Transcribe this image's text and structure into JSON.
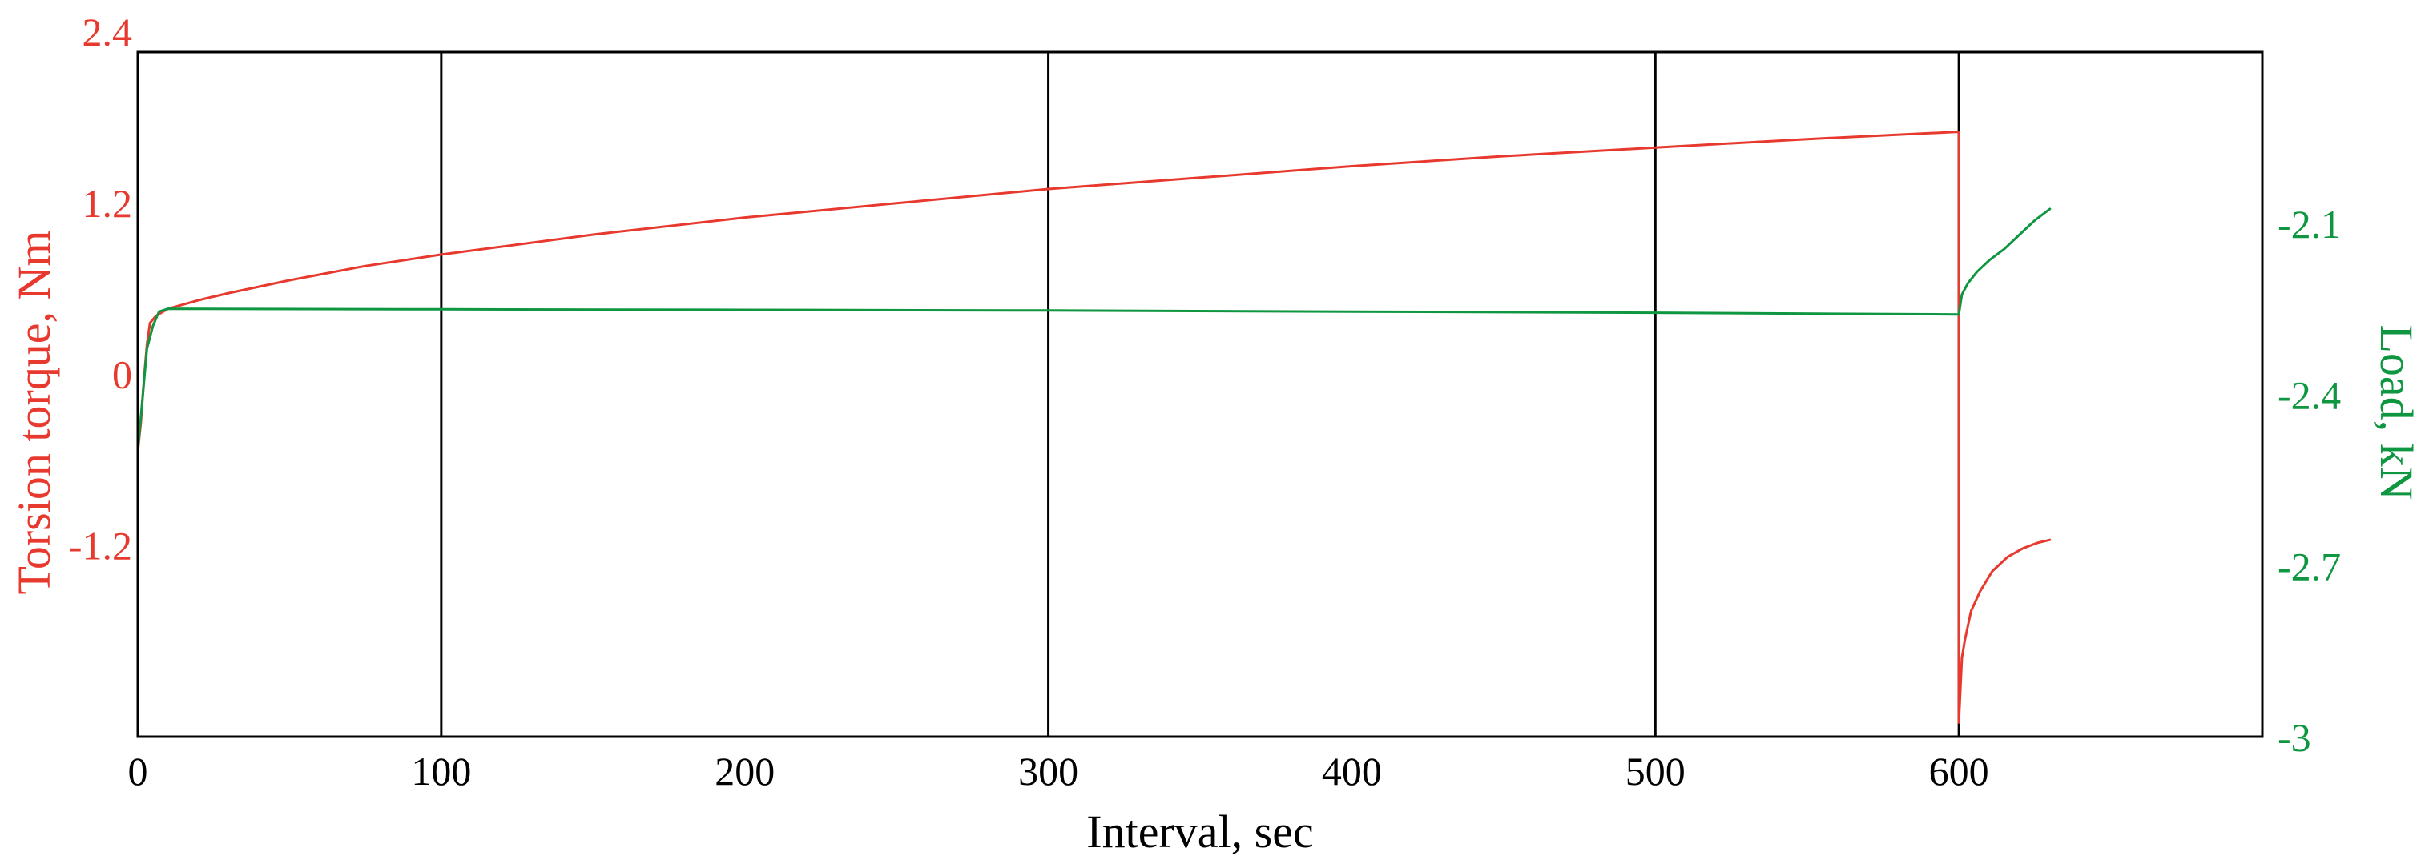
{
  "chart_data": {
    "type": "line",
    "xlabel": "Interval, sec",
    "ylabel_left": "Torsion torque, Nm",
    "ylabel_right": "Load, kN",
    "xlim": [
      0,
      700
    ],
    "ylim_left": [
      -2.4,
      2.4
    ],
    "ylim_right": [
      -3.0,
      -1.8
    ],
    "x_ticks": [
      "0",
      "100",
      "200",
      "300",
      "400",
      "500",
      "600"
    ],
    "x_tick_values": [
      0,
      100,
      200,
      300,
      400,
      500,
      600
    ],
    "y_left_ticks": [
      "2.4",
      "1.2",
      "0",
      "-1.2"
    ],
    "y_left_tick_values": [
      2.4,
      1.2,
      0,
      -1.2
    ],
    "y_right_ticks": [
      "-2.1",
      "-2.4",
      "-2.7",
      "-3"
    ],
    "y_right_tick_values": [
      -2.1,
      -2.4,
      -2.7,
      -3.0
    ],
    "grid_x": [
      100,
      300,
      500,
      600
    ],
    "colors": {
      "torque": "#e8392f",
      "load": "#0f9641",
      "axes": "#000000"
    },
    "series": [
      {
        "axis": "left",
        "color": "#e8392f",
        "segments": [
          [
            [
              0,
              -0.4
            ],
            [
              1,
              -0.2
            ],
            [
              2,
              0.1
            ],
            [
              3,
              0.35
            ],
            [
              4,
              0.5
            ],
            [
              6,
              0.55
            ],
            [
              10,
              0.6
            ],
            [
              20,
              0.66
            ],
            [
              30,
              0.71
            ],
            [
              50,
              0.8
            ],
            [
              75,
              0.9
            ],
            [
              100,
              0.98
            ],
            [
              150,
              1.12
            ],
            [
              200,
              1.24
            ],
            [
              250,
              1.34
            ],
            [
              300,
              1.44
            ],
            [
              350,
              1.52
            ],
            [
              400,
              1.6
            ],
            [
              450,
              1.67
            ],
            [
              500,
              1.73
            ],
            [
              550,
              1.79
            ],
            [
              599,
              1.84
            ],
            [
              600,
              1.84
            ]
          ],
          [
            [
              600,
              1.84
            ],
            [
              600,
              -2.3
            ]
          ],
          [
            [
              600,
              -2.3
            ],
            [
              601,
              -1.85
            ],
            [
              602,
              -1.72
            ],
            [
              604,
              -1.52
            ],
            [
              607,
              -1.38
            ],
            [
              611,
              -1.24
            ],
            [
              616,
              -1.14
            ],
            [
              621,
              -1.08
            ],
            [
              626,
              -1.04
            ],
            [
              630,
              -1.02
            ]
          ]
        ]
      },
      {
        "axis": "right",
        "color": "#0f9641",
        "segments": [
          [
            [
              0,
              -2.5
            ],
            [
              1,
              -2.44
            ],
            [
              2,
              -2.38
            ],
            [
              3,
              -2.32
            ],
            [
              5,
              -2.28
            ],
            [
              7,
              -2.255
            ],
            [
              10,
              -2.25
            ],
            [
              100,
              -2.251
            ],
            [
              200,
              -2.252
            ],
            [
              300,
              -2.253
            ],
            [
              400,
              -2.255
            ],
            [
              500,
              -2.257
            ],
            [
              600,
              -2.26
            ]
          ],
          [
            [
              600,
              -2.26
            ],
            [
              601,
              -2.225
            ],
            [
              603,
              -2.205
            ],
            [
              606,
              -2.185
            ],
            [
              610,
              -2.165
            ],
            [
              615,
              -2.145
            ],
            [
              620,
              -2.12
            ],
            [
              625,
              -2.095
            ],
            [
              630,
              -2.075
            ]
          ]
        ]
      }
    ]
  }
}
